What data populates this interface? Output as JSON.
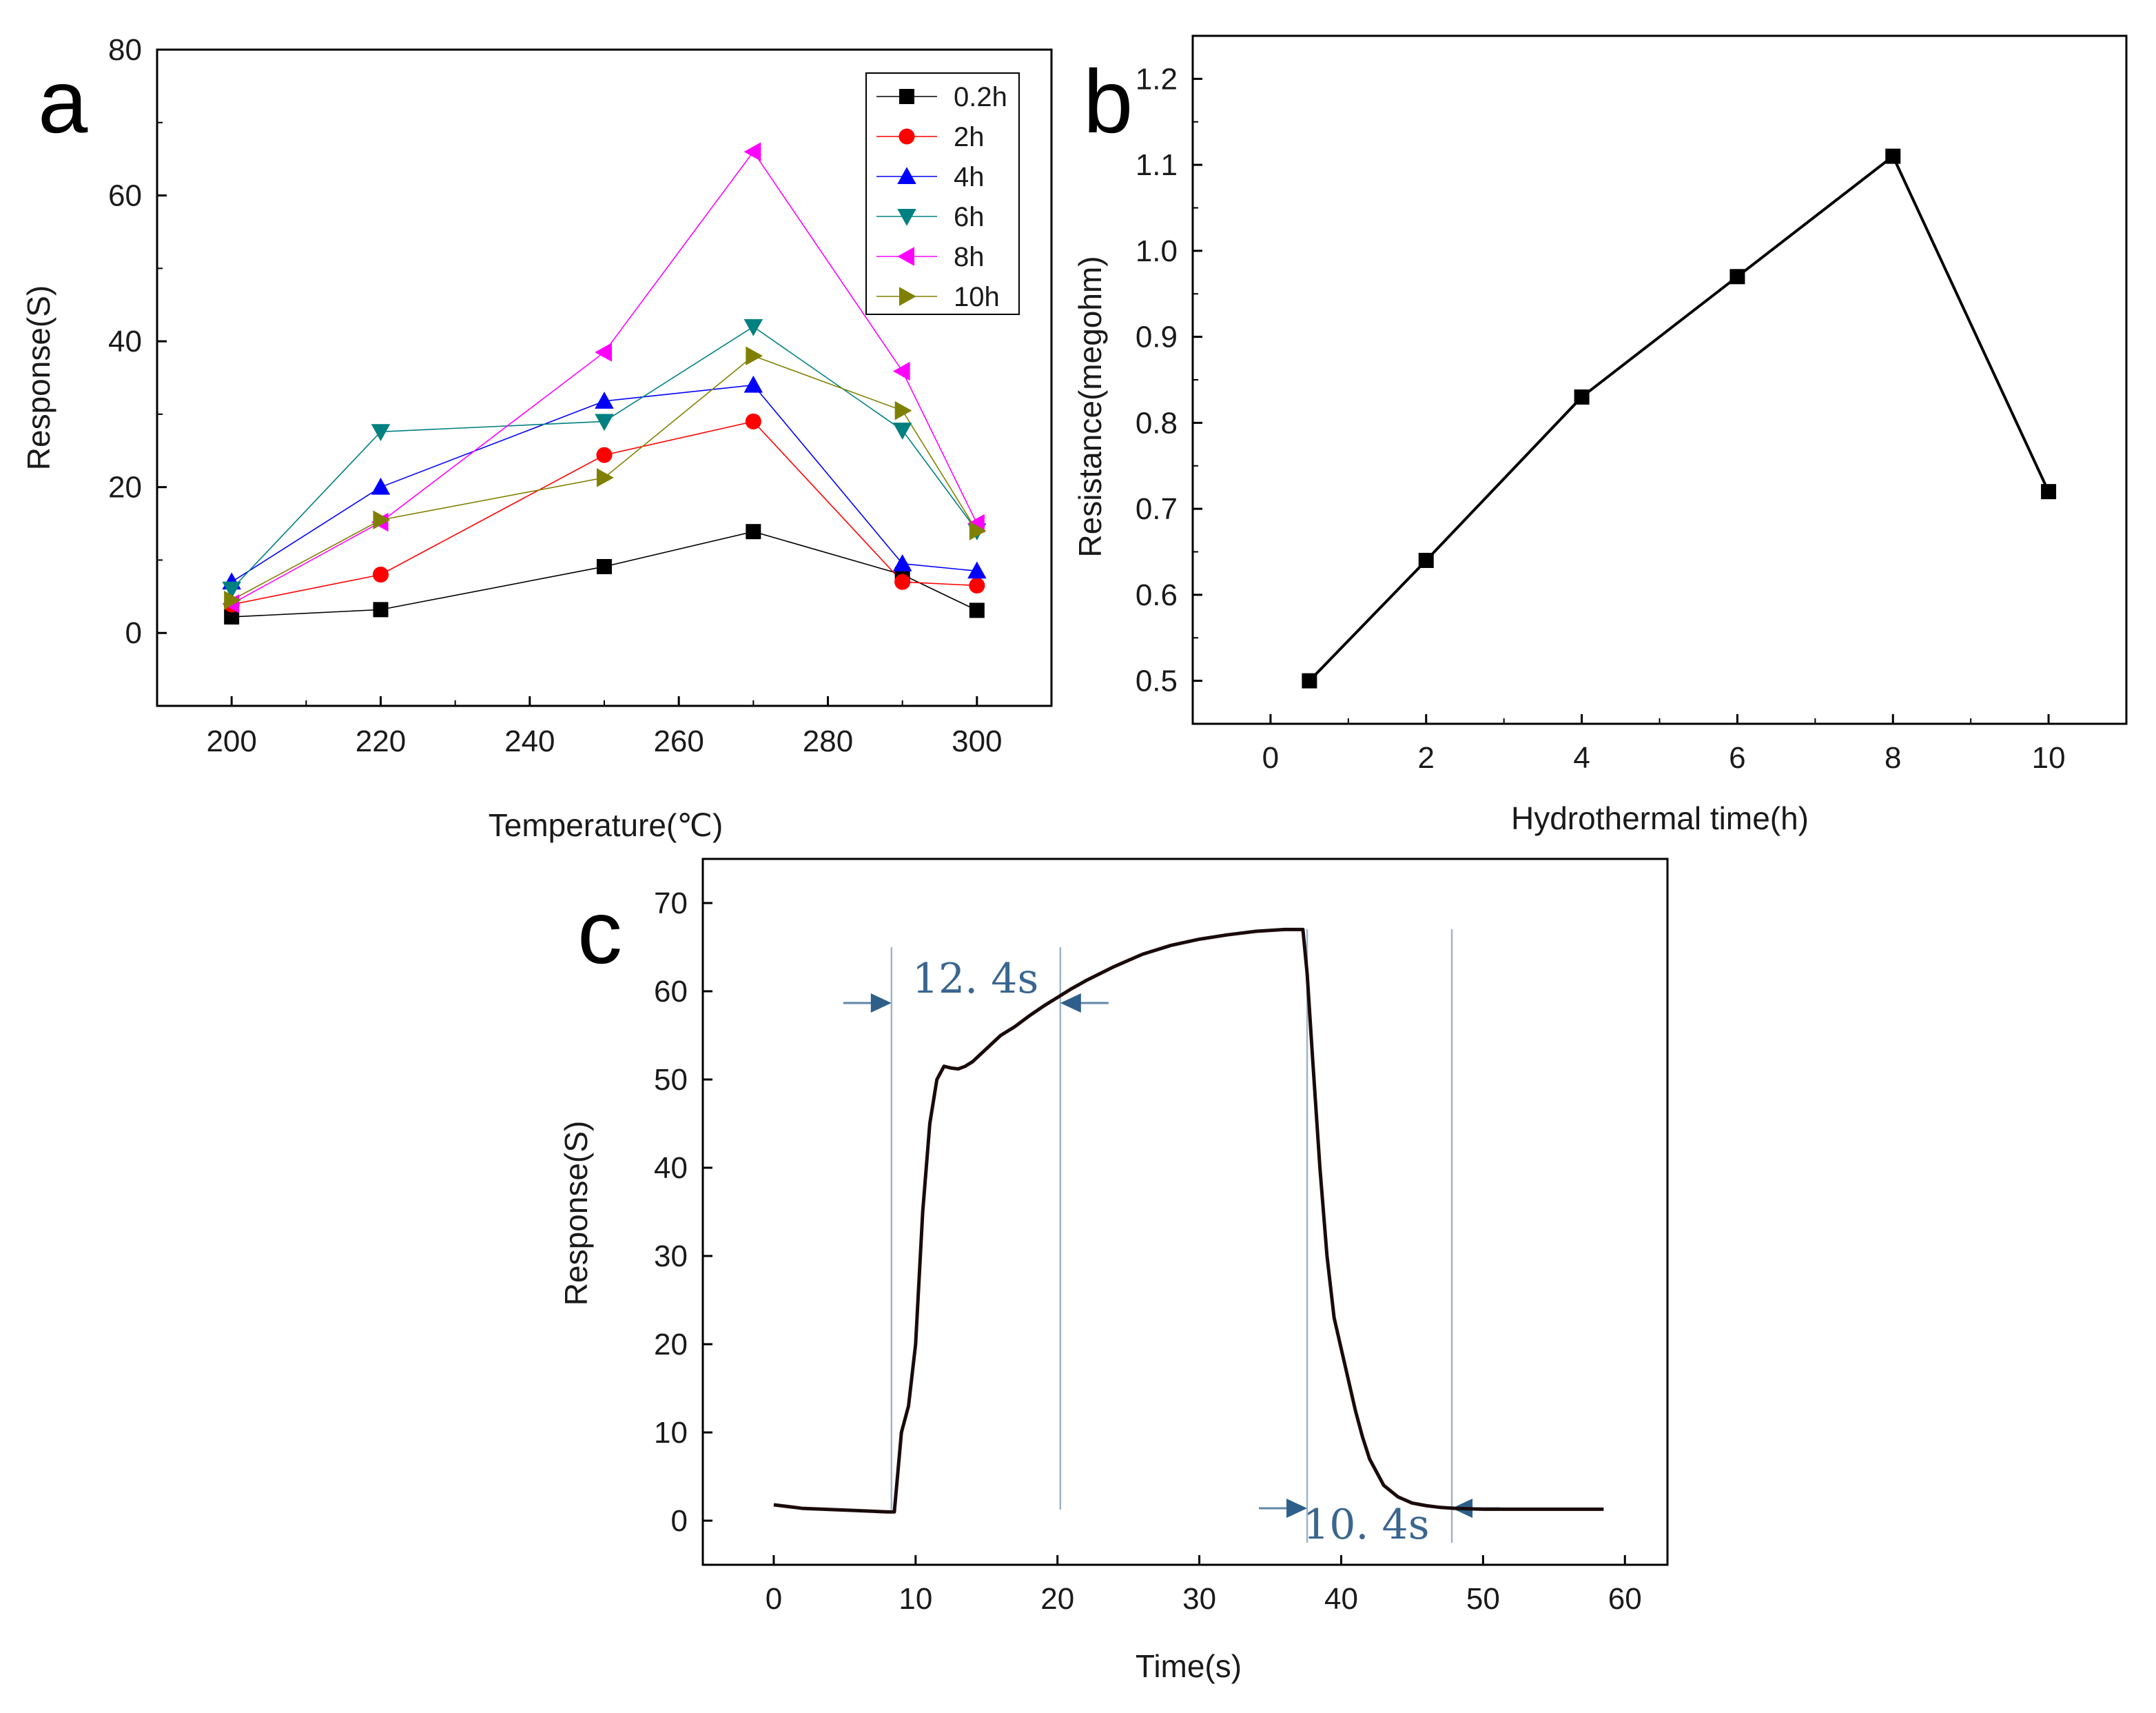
{
  "chart_data": [
    {
      "id": "a",
      "panel_label": "a",
      "type": "line",
      "xlabel": "Temperature(℃)",
      "ylabel": "Response(S)",
      "xlim": [
        190,
        310
      ],
      "ylim": [
        -10,
        80
      ],
      "xticks": [
        200,
        220,
        240,
        260,
        280,
        300
      ],
      "yticks": [
        0,
        20,
        40,
        60,
        80
      ],
      "x": [
        200,
        220,
        250,
        270,
        290,
        300
      ],
      "legend_position": "top-right",
      "series": [
        {
          "name": "0.2h",
          "marker": "square",
          "color": "#000000",
          "values": [
            2.2,
            3.2,
            9.1,
            13.9,
            8.0,
            3.1
          ]
        },
        {
          "name": "2h",
          "marker": "circle",
          "color": "#ff0000",
          "values": [
            3.9,
            8.0,
            24.4,
            29.0,
            7.0,
            6.5
          ]
        },
        {
          "name": "4h",
          "marker": "triangle-up",
          "color": "#0000ff",
          "values": [
            7.0,
            20.0,
            31.8,
            34.0,
            9.5,
            8.5
          ]
        },
        {
          "name": "6h",
          "marker": "triangle-down",
          "color": "#008080",
          "values": [
            6.0,
            27.6,
            29.0,
            42.0,
            27.8,
            14.0
          ]
        },
        {
          "name": "8h",
          "marker": "triangle-left",
          "color": "#ff00ff",
          "values": [
            4.0,
            15.2,
            38.5,
            66.0,
            35.9,
            15.0
          ]
        },
        {
          "name": "10h",
          "marker": "triangle-right",
          "color": "#808000",
          "values": [
            4.5,
            15.5,
            21.3,
            38.0,
            30.5,
            14.0
          ]
        }
      ]
    },
    {
      "id": "b",
      "panel_label": "b",
      "type": "line",
      "xlabel": "Hydrothermal time(h)",
      "ylabel": "Resistance(megohm)",
      "xlim": [
        -1,
        11
      ],
      "ylim": [
        0.45,
        1.25
      ],
      "xticks": [
        0,
        2,
        4,
        6,
        8,
        10
      ],
      "yticks": [
        0.5,
        0.6,
        0.7,
        0.8,
        0.9,
        1.0,
        1.1,
        1.2
      ],
      "ytick_labels": [
        "0.5",
        "0.6",
        "0.7",
        "0.8",
        "0.9",
        "1.0",
        "1.1",
        "1.2"
      ],
      "series": [
        {
          "name": "Resistance",
          "marker": "square",
          "color": "#000000",
          "x": [
            0.5,
            2,
            4,
            6,
            8,
            10
          ],
          "values": [
            0.5,
            0.64,
            0.83,
            0.97,
            1.11,
            0.72
          ]
        }
      ]
    },
    {
      "id": "c",
      "panel_label": "c",
      "type": "line",
      "xlabel": "Time(s)",
      "ylabel": "Response(S)",
      "xlim": [
        -5,
        63
      ],
      "ylim": [
        -5,
        75
      ],
      "xticks": [
        0,
        10,
        20,
        30,
        40,
        50,
        60
      ],
      "yticks": [
        0,
        10,
        20,
        30,
        40,
        50,
        60,
        70
      ],
      "series": [
        {
          "name": "Response",
          "color": "#000000",
          "x": [
            0,
            2,
            5,
            8,
            8.5,
            9.0,
            9.5,
            10,
            10.5,
            11,
            11.5,
            12,
            12.5,
            13,
            13.5,
            14,
            15,
            16,
            17,
            18,
            19,
            20,
            21,
            22,
            24,
            26,
            28,
            30,
            32,
            34,
            36,
            37.3,
            37.6,
            38,
            38.5,
            39,
            39.5,
            40,
            40.5,
            41,
            41.5,
            42,
            43,
            44,
            45,
            46,
            47,
            48,
            50,
            54,
            58.5
          ],
          "values": [
            1.8,
            1.4,
            1.2,
            1.0,
            1.0,
            10,
            13,
            20,
            35,
            45,
            50,
            51.5,
            51.3,
            51.2,
            51.5,
            52,
            53.5,
            55,
            56,
            57.2,
            58.3,
            59.3,
            60.3,
            61.2,
            62.8,
            64.2,
            65.2,
            65.9,
            66.4,
            66.8,
            67.0,
            67.0,
            62,
            52,
            40,
            30,
            23,
            19.5,
            16,
            12.5,
            9.5,
            7,
            4,
            2.7,
            2.0,
            1.7,
            1.5,
            1.4,
            1.3,
            1.3,
            1.3
          ]
        }
      ],
      "annotations": [
        {
          "text": "12. 4s",
          "x_start": 8.3,
          "x_end": 20.2
        },
        {
          "text": "10. 4s",
          "x_start": 37.6,
          "x_end": 47.8
        }
      ]
    }
  ]
}
